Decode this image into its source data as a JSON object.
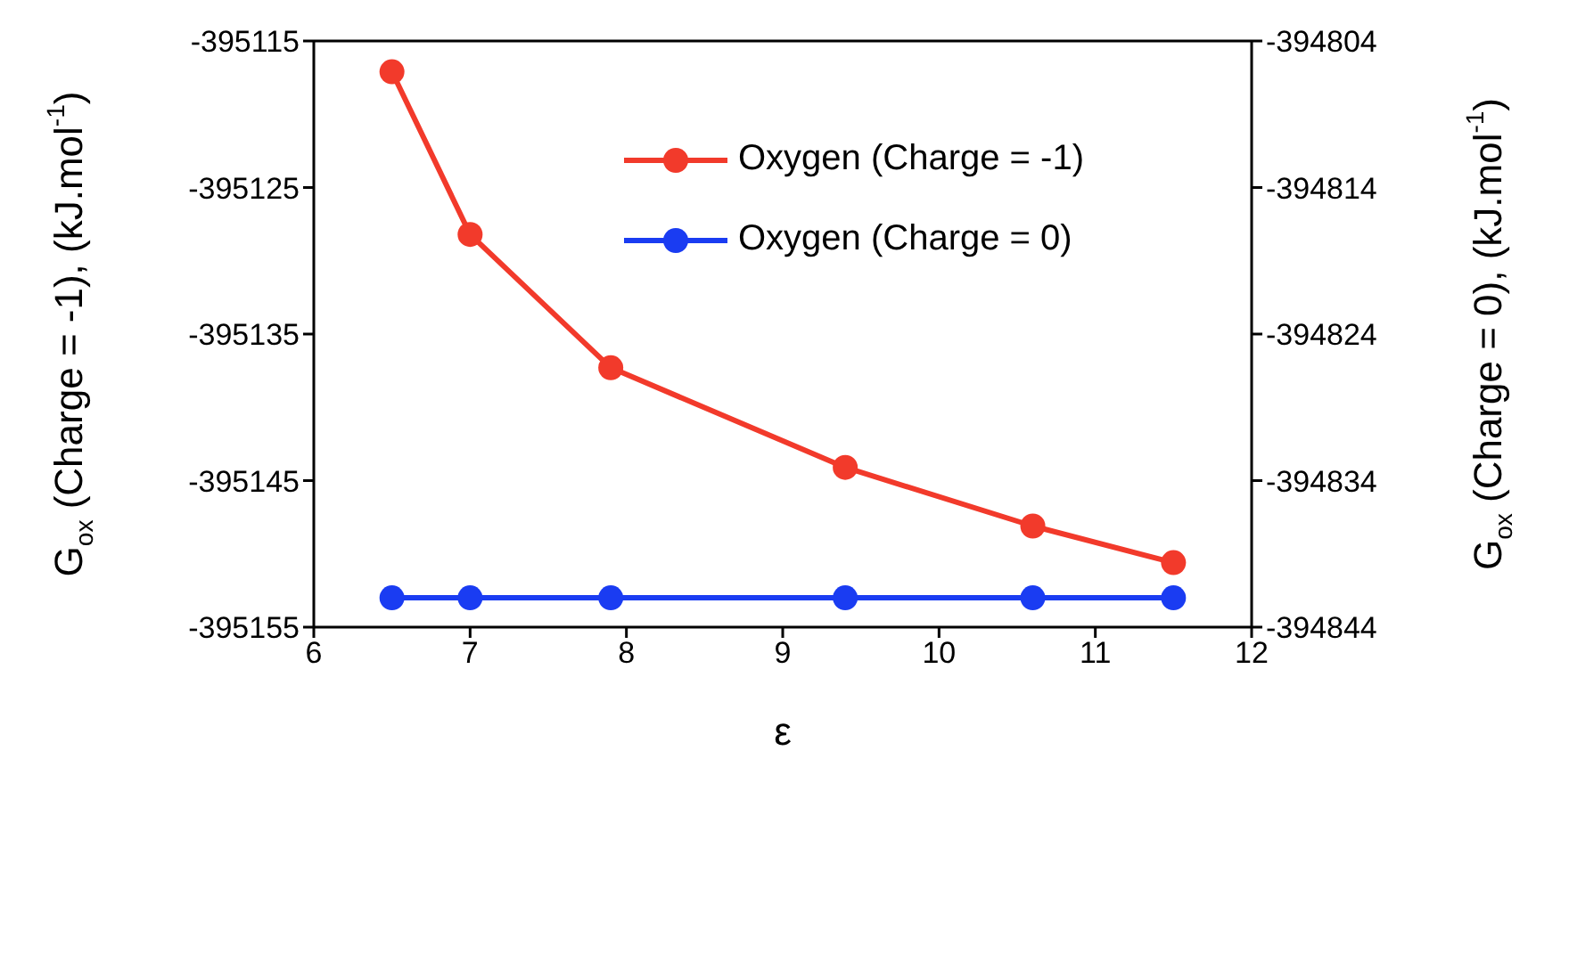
{
  "chart_data": {
    "type": "line",
    "xlabel": "ε",
    "ylabel": "G$_{ox}$ (Charge = -1), (kJ.mol$^{-1}$)",
    "y2label": "G$_{ox}$ (Charge = 0), (kJ.mol$^{-1}$)",
    "x": [
      6.5,
      7,
      7.9,
      9.4,
      10.6,
      11.5
    ],
    "series": [
      {
        "name": "Oxygen (Charge = -1)",
        "color": "#f23a2b",
        "values": [
          -395117.1,
          -395128.2,
          -395137.3,
          -395144.1,
          -395148.1,
          -395150.6
        ]
      },
      {
        "name": "Oxygen (Charge = 0)",
        "color": "#1a3cf2",
        "axis": "y2",
        "values": [
          -394842,
          -394842,
          -394842,
          -394842,
          -394842,
          -394842
        ]
      }
    ],
    "xlim": [
      6,
      12
    ],
    "xticks": [
      6,
      7,
      8,
      9,
      10,
      11,
      12
    ],
    "ylim": [
      -395155,
      -395115
    ],
    "yticks": [
      -395155,
      -395145,
      -395135,
      -395125,
      -395115
    ],
    "y2lim": [
      -394844,
      -394804
    ],
    "y2ticks": [
      -394844,
      -394834,
      -394824,
      -394814,
      -394804
    ],
    "marker": "circle",
    "line_style": "solid",
    "legend": "top right",
    "grid": false
  }
}
